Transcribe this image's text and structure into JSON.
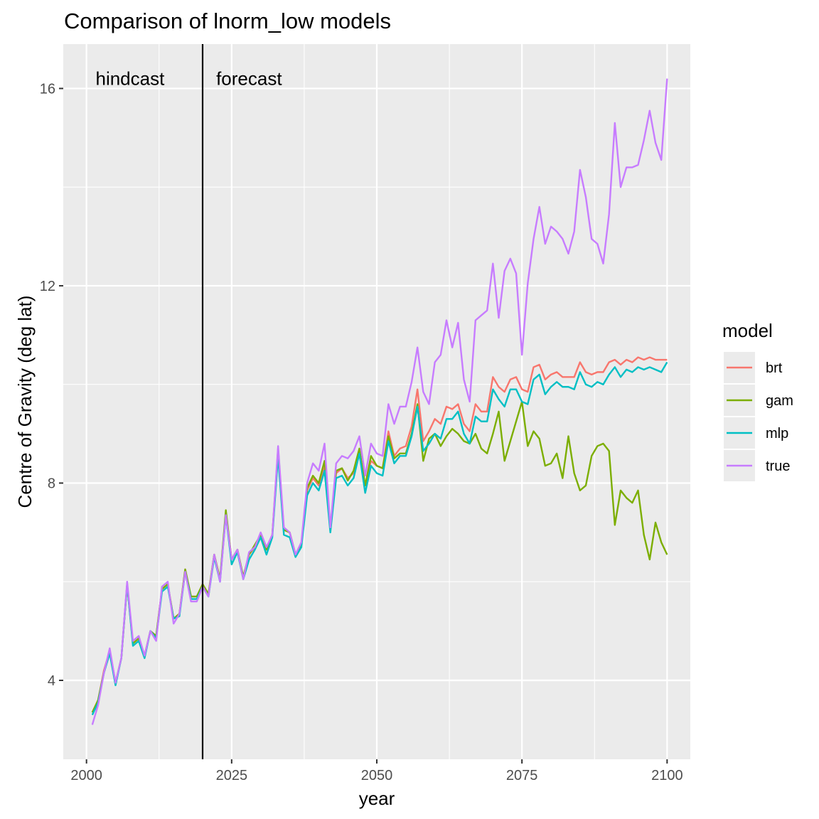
{
  "chart_data": {
    "type": "line",
    "title": "Comparison of lnorm_low models",
    "xlabel": "year",
    "ylabel": "Centre of Gravity (deg lat)",
    "xlim": [
      1996,
      2104
    ],
    "ylim": [
      2.4,
      16.9
    ],
    "x_ticks": [
      2000,
      2025,
      2050,
      2075,
      2100
    ],
    "y_ticks": [
      4,
      8,
      12,
      16
    ],
    "grid": true,
    "legend": {
      "title": "model",
      "position": "right"
    },
    "vline": {
      "x": 2020
    },
    "annotations": [
      {
        "text": "hindcast",
        "x": 2007.5,
        "y": 16.2
      },
      {
        "text": "forecast",
        "x": 2028,
        "y": 16.2
      }
    ],
    "x": [
      2001,
      2002,
      2003,
      2004,
      2005,
      2006,
      2007,
      2008,
      2009,
      2010,
      2011,
      2012,
      2013,
      2014,
      2015,
      2016,
      2017,
      2018,
      2019,
      2020,
      2021,
      2022,
      2023,
      2024,
      2025,
      2026,
      2027,
      2028,
      2029,
      2030,
      2031,
      2032,
      2033,
      2034,
      2035,
      2036,
      2037,
      2038,
      2039,
      2040,
      2041,
      2042,
      2043,
      2044,
      2045,
      2046,
      2047,
      2048,
      2049,
      2050,
      2051,
      2052,
      2053,
      2054,
      2055,
      2056,
      2057,
      2058,
      2059,
      2060,
      2061,
      2062,
      2063,
      2064,
      2065,
      2066,
      2067,
      2068,
      2069,
      2070,
      2071,
      2072,
      2073,
      2074,
      2075,
      2076,
      2077,
      2078,
      2079,
      2080,
      2081,
      2082,
      2083,
      2084,
      2085,
      2086,
      2087,
      2088,
      2089,
      2090,
      2091,
      2092,
      2093,
      2094,
      2095,
      2096,
      2097,
      2098,
      2099,
      2100
    ],
    "series": [
      {
        "name": "brt",
        "color": "#F8766D",
        "values": [
          3.35,
          3.6,
          4.2,
          4.6,
          3.95,
          4.45,
          5.95,
          4.75,
          4.85,
          4.5,
          5.0,
          4.9,
          5.85,
          5.95,
          5.25,
          5.35,
          6.25,
          5.7,
          5.7,
          5.95,
          5.75,
          6.55,
          6.05,
          7.4,
          6.45,
          6.65,
          6.1,
          6.55,
          6.7,
          6.95,
          6.65,
          6.95,
          8.7,
          7.05,
          7.0,
          6.55,
          6.75,
          7.85,
          8.1,
          7.95,
          8.35,
          7.1,
          8.2,
          8.3,
          8.1,
          8.2,
          8.65,
          7.95,
          8.45,
          8.35,
          8.3,
          9.05,
          8.55,
          8.7,
          8.75,
          9.15,
          9.9,
          8.85,
          9.05,
          9.3,
          9.2,
          9.55,
          9.5,
          9.6,
          9.2,
          9.05,
          9.6,
          9.45,
          9.45,
          10.15,
          9.95,
          9.85,
          10.1,
          10.15,
          9.9,
          9.85,
          10.35,
          10.4,
          10.1,
          10.2,
          10.25,
          10.15,
          10.15,
          10.15,
          10.45,
          10.25,
          10.2,
          10.25,
          10.25,
          10.45,
          10.5,
          10.4,
          10.5,
          10.45,
          10.55,
          10.5,
          10.55,
          10.5,
          10.5,
          10.5
        ]
      },
      {
        "name": "gam",
        "color": "#7CAE00",
        "values": [
          3.35,
          3.6,
          4.15,
          4.6,
          3.95,
          4.45,
          5.95,
          4.75,
          4.85,
          4.5,
          5.0,
          4.9,
          5.85,
          5.95,
          5.25,
          5.35,
          6.25,
          5.7,
          5.7,
          5.95,
          5.75,
          6.55,
          6.05,
          7.45,
          6.45,
          6.65,
          6.1,
          6.55,
          6.75,
          6.95,
          6.65,
          6.95,
          8.6,
          7.05,
          7.0,
          6.55,
          6.75,
          7.9,
          8.15,
          8.0,
          8.45,
          7.1,
          8.25,
          8.3,
          8.05,
          8.25,
          8.7,
          7.95,
          8.55,
          8.35,
          8.3,
          8.95,
          8.5,
          8.6,
          8.6,
          9.0,
          9.6,
          8.45,
          8.9,
          9.0,
          8.75,
          8.95,
          9.1,
          9.0,
          8.85,
          8.8,
          9.0,
          8.7,
          8.6,
          9.0,
          9.45,
          8.45,
          8.85,
          9.25,
          9.65,
          8.75,
          9.05,
          8.9,
          8.35,
          8.4,
          8.6,
          8.1,
          8.95,
          8.2,
          7.85,
          7.95,
          8.55,
          8.75,
          8.8,
          8.65,
          7.15,
          7.85,
          7.7,
          7.6,
          7.85,
          6.95,
          6.45,
          7.2,
          6.8,
          6.55
        ]
      },
      {
        "name": "mlp",
        "color": "#00BFC4",
        "values": [
          3.3,
          3.55,
          4.15,
          4.55,
          3.9,
          4.45,
          5.95,
          4.7,
          4.8,
          4.45,
          5.0,
          4.85,
          5.8,
          5.9,
          5.25,
          5.3,
          6.2,
          5.65,
          5.65,
          5.9,
          5.7,
          6.5,
          6.0,
          7.35,
          6.35,
          6.6,
          6.05,
          6.45,
          6.65,
          6.9,
          6.55,
          6.9,
          8.55,
          6.95,
          6.9,
          6.5,
          6.7,
          7.75,
          8.0,
          7.85,
          8.25,
          7.0,
          8.1,
          8.15,
          7.95,
          8.1,
          8.6,
          7.8,
          8.35,
          8.2,
          8.15,
          8.85,
          8.4,
          8.55,
          8.55,
          8.95,
          9.55,
          8.65,
          8.8,
          9.0,
          8.9,
          9.3,
          9.3,
          9.45,
          9.0,
          8.8,
          9.35,
          9.25,
          9.25,
          9.9,
          9.7,
          9.55,
          9.9,
          9.9,
          9.65,
          9.6,
          10.1,
          10.2,
          9.8,
          9.95,
          10.05,
          9.95,
          9.95,
          9.9,
          10.25,
          10.0,
          9.95,
          10.05,
          10.0,
          10.2,
          10.35,
          10.15,
          10.3,
          10.25,
          10.35,
          10.3,
          10.35,
          10.3,
          10.25,
          10.45
        ]
      },
      {
        "name": "true",
        "color": "#C77CFF",
        "values": [
          3.1,
          3.5,
          4.15,
          4.65,
          3.95,
          4.45,
          6.0,
          4.8,
          4.9,
          4.5,
          5.0,
          4.8,
          5.9,
          6.0,
          5.15,
          5.35,
          6.2,
          5.6,
          5.6,
          5.9,
          5.7,
          6.55,
          6.0,
          7.35,
          6.45,
          6.65,
          6.05,
          6.6,
          6.7,
          7.0,
          6.7,
          6.95,
          8.75,
          7.1,
          7.0,
          6.55,
          6.8,
          8.0,
          8.4,
          8.25,
          8.8,
          7.1,
          8.4,
          8.55,
          8.5,
          8.65,
          8.95,
          8.15,
          8.8,
          8.6,
          8.55,
          9.6,
          9.2,
          9.55,
          9.55,
          10.05,
          10.75,
          9.85,
          9.6,
          10.45,
          10.6,
          11.3,
          10.75,
          11.25,
          10.1,
          9.65,
          11.3,
          11.4,
          11.5,
          12.45,
          11.35,
          12.3,
          12.55,
          12.25,
          10.6,
          12.05,
          12.95,
          13.6,
          12.85,
          13.2,
          13.1,
          12.95,
          12.65,
          13.1,
          14.35,
          13.8,
          12.95,
          12.85,
          12.45,
          13.45,
          15.3,
          14.0,
          14.4,
          14.4,
          14.45,
          14.95,
          15.55,
          14.9,
          14.55,
          16.2
        ]
      }
    ]
  }
}
